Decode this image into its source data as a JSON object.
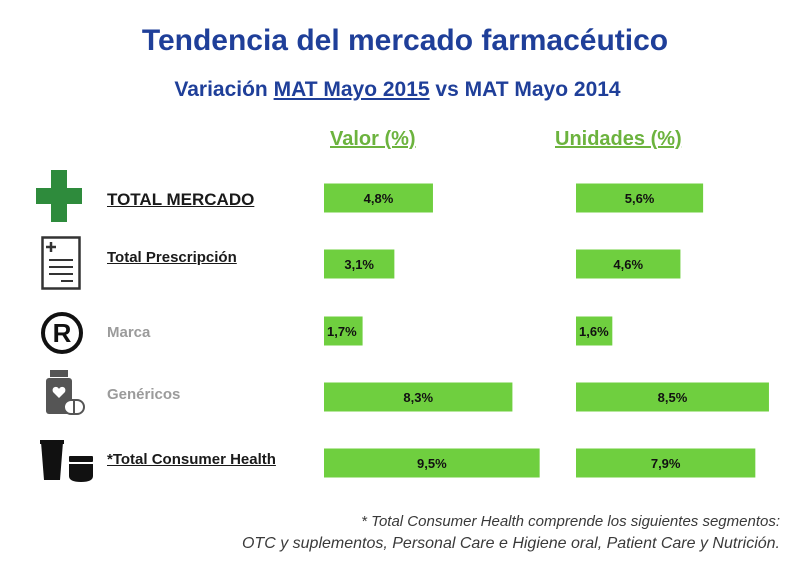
{
  "title": "Tendencia del mercado farmacéutico",
  "subtitle": {
    "prefix": "Variación ",
    "underlined": "MAT Mayo 2015",
    "suffix": " vs MAT Mayo 2014"
  },
  "colors": {
    "title": "#1f3f99",
    "bar": "#6fcf3f",
    "header": "#6cb33e"
  },
  "chart_data": {
    "type": "bar",
    "orientation": "horizontal",
    "categories": [
      "TOTAL MERCADO",
      "Total Prescripción",
      "Marca",
      "Genéricos",
      "*Total Consumer Health"
    ],
    "series": [
      {
        "name": "Valor (%)",
        "values": [
          4.8,
          3.1,
          1.7,
          8.3,
          9.5
        ],
        "labels": [
          "4,8%",
          "3,1%",
          "1,7%",
          "8,3%",
          "9,5%"
        ]
      },
      {
        "name": "Unidades (%)",
        "values": [
          5.6,
          4.6,
          1.6,
          8.5,
          7.9
        ],
        "labels": [
          "5,6%",
          "4,6%",
          "1,6%",
          "8,5%",
          "7,9%"
        ]
      }
    ],
    "icons": [
      "green-cross-icon",
      "prescription-document-icon",
      "registered-trademark-icon",
      "generic-medicine-icon",
      "cosmetics-icon"
    ],
    "category_styles": [
      "emphasis",
      "emphasis",
      "muted",
      "muted",
      "emphasis"
    ]
  },
  "footnote": {
    "line1": "* Total Consumer Health comprende los siguientes segmentos:",
    "line2": "OTC y suplementos, Personal Care e Higiene oral, Patient Care y Nutrición."
  }
}
